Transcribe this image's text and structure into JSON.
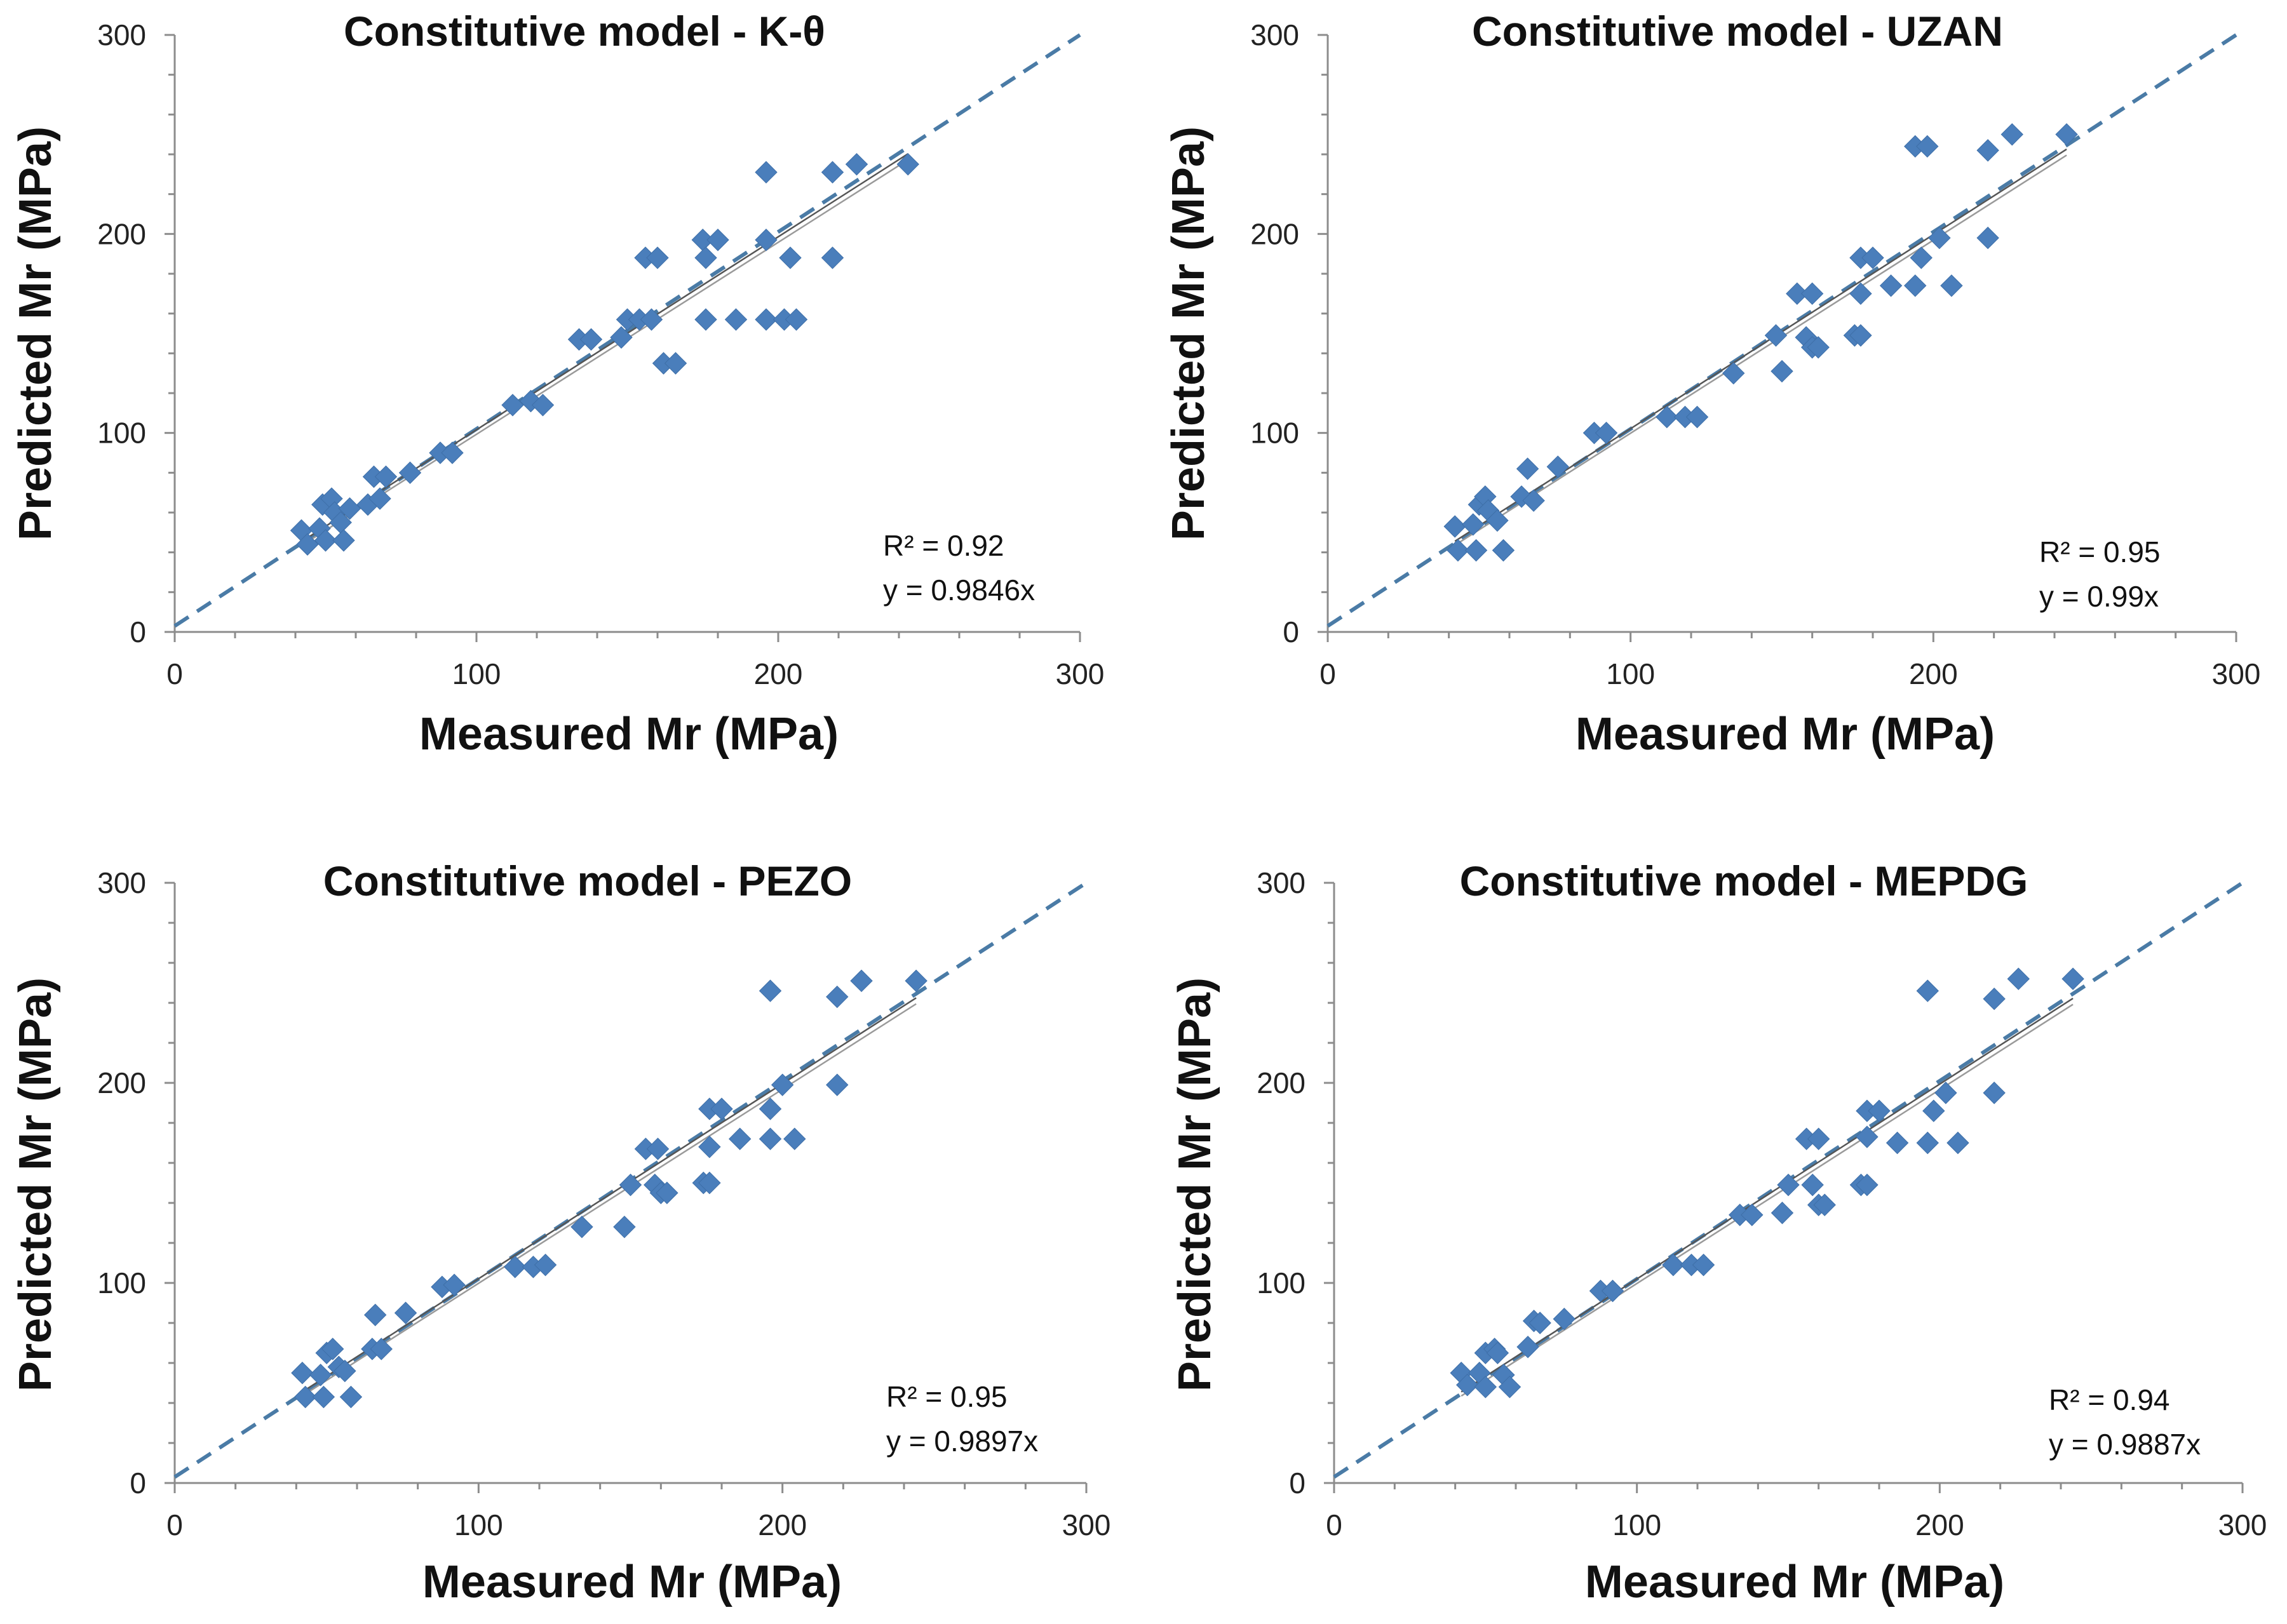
{
  "chart_data": [
    {
      "type": "scatter",
      "title": "Constitutive model - K-θ",
      "xlabel": "Measured Mr (MPa)",
      "ylabel": "Predicted Mr (MPa)",
      "xlim": [
        0,
        300
      ],
      "ylim": [
        0,
        300
      ],
      "xticks": [
        "0",
        "100",
        "200",
        "300"
      ],
      "yticks": [
        "0",
        "100",
        "200",
        "300"
      ],
      "r2_label": "R² = 0.92",
      "equation_label": "y = 0.9846x",
      "slope": 0.9846,
      "color": "#4a7ebb",
      "points": [
        [
          42,
          51
        ],
        [
          44,
          44
        ],
        [
          48,
          52
        ],
        [
          49,
          64
        ],
        [
          50,
          46
        ],
        [
          52,
          67
        ],
        [
          53,
          60
        ],
        [
          55,
          55
        ],
        [
          56,
          46
        ],
        [
          58,
          62
        ],
        [
          64,
          64
        ],
        [
          66,
          78
        ],
        [
          68,
          67
        ],
        [
          70,
          78
        ],
        [
          78,
          80
        ],
        [
          88,
          90
        ],
        [
          92,
          90
        ],
        [
          112,
          114
        ],
        [
          118,
          116
        ],
        [
          122,
          114
        ],
        [
          134,
          147
        ],
        [
          138,
          147
        ],
        [
          148,
          148
        ],
        [
          150,
          157
        ],
        [
          154,
          157
        ],
        [
          156,
          188
        ],
        [
          160,
          188
        ],
        [
          158,
          157
        ],
        [
          162,
          135
        ],
        [
          166,
          135
        ],
        [
          175,
          197
        ],
        [
          176,
          188
        ],
        [
          176,
          157
        ],
        [
          180,
          197
        ],
        [
          186,
          157
        ],
        [
          196,
          157
        ],
        [
          196,
          197
        ],
        [
          196,
          231
        ],
        [
          202,
          157
        ],
        [
          206,
          157
        ],
        [
          204,
          188
        ],
        [
          218,
          231
        ],
        [
          218,
          188
        ],
        [
          226,
          235
        ],
        [
          243,
          235
        ]
      ]
    },
    {
      "type": "scatter",
      "title": "Constitutive model - UZAN",
      "xlabel": "Measured Mr (MPa)",
      "ylabel": "Predicted Mr (MPa)",
      "xlim": [
        0,
        300
      ],
      "ylim": [
        0,
        300
      ],
      "xticks": [
        "0",
        "100",
        "200",
        "300"
      ],
      "yticks": [
        "0",
        "100",
        "200",
        "300"
      ],
      "r2_label": "R² = 0.95",
      "equation_label": "y = 0.99x",
      "slope": 0.99,
      "color": "#4a7ebb",
      "points": [
        [
          42,
          53
        ],
        [
          43,
          41
        ],
        [
          48,
          54
        ],
        [
          49,
          41
        ],
        [
          50,
          64
        ],
        [
          52,
          68
        ],
        [
          53,
          61
        ],
        [
          56,
          56
        ],
        [
          58,
          41
        ],
        [
          64,
          68
        ],
        [
          66,
          82
        ],
        [
          68,
          66
        ],
        [
          76,
          83
        ],
        [
          88,
          100
        ],
        [
          92,
          100
        ],
        [
          112,
          108
        ],
        [
          118,
          108
        ],
        [
          122,
          108
        ],
        [
          134,
          130
        ],
        [
          148,
          149
        ],
        [
          150,
          131
        ],
        [
          155,
          170
        ],
        [
          160,
          170
        ],
        [
          158,
          148
        ],
        [
          160,
          143
        ],
        [
          162,
          143
        ],
        [
          174,
          149
        ],
        [
          176,
          149
        ],
        [
          176,
          188
        ],
        [
          176,
          170
        ],
        [
          180,
          188
        ],
        [
          186,
          174
        ],
        [
          194,
          174
        ],
        [
          194,
          244
        ],
        [
          196,
          188
        ],
        [
          198,
          244
        ],
        [
          202,
          198
        ],
        [
          206,
          174
        ],
        [
          218,
          242
        ],
        [
          218,
          198
        ],
        [
          226,
          250
        ],
        [
          244,
          250
        ]
      ]
    },
    {
      "type": "scatter",
      "title": "Constitutive model - PEZO",
      "xlabel": "Measured Mr (MPa)",
      "ylabel": "Predicted Mr (MPa)",
      "xlim": [
        0,
        300
      ],
      "ylim": [
        0,
        300
      ],
      "xticks": [
        "0",
        "100",
        "200",
        "300"
      ],
      "yticks": [
        "0",
        "100",
        "200",
        "300"
      ],
      "r2_label": "R² = 0.95",
      "equation_label": "y = 0.9897x",
      "slope": 0.9897,
      "color": "#4a7ebb",
      "points": [
        [
          42,
          55
        ],
        [
          43,
          43
        ],
        [
          48,
          54
        ],
        [
          49,
          43
        ],
        [
          50,
          65
        ],
        [
          52,
          67
        ],
        [
          54,
          58
        ],
        [
          56,
          56
        ],
        [
          58,
          43
        ],
        [
          65,
          67
        ],
        [
          66,
          84
        ],
        [
          68,
          67
        ],
        [
          76,
          85
        ],
        [
          88,
          98
        ],
        [
          92,
          99
        ],
        [
          112,
          108
        ],
        [
          118,
          108
        ],
        [
          122,
          109
        ],
        [
          134,
          128
        ],
        [
          148,
          128
        ],
        [
          150,
          149
        ],
        [
          155,
          167
        ],
        [
          159,
          167
        ],
        [
          158,
          149
        ],
        [
          160,
          145
        ],
        [
          162,
          145
        ],
        [
          174,
          150
        ],
        [
          176,
          150
        ],
        [
          176,
          187
        ],
        [
          176,
          168
        ],
        [
          180,
          187
        ],
        [
          186,
          172
        ],
        [
          196,
          172
        ],
        [
          196,
          246
        ],
        [
          196,
          187
        ],
        [
          200,
          199
        ],
        [
          204,
          172
        ],
        [
          218,
          243
        ],
        [
          218,
          199
        ],
        [
          226,
          251
        ],
        [
          244,
          251
        ]
      ]
    },
    {
      "type": "scatter",
      "title": "Constitutive model - MEPDG",
      "xlabel": "Measured Mr (MPa)",
      "ylabel": "Predicted Mr (MPa)",
      "xlim": [
        0,
        300
      ],
      "ylim": [
        0,
        300
      ],
      "xticks": [
        "0",
        "100",
        "200",
        "300"
      ],
      "yticks": [
        "0",
        "100",
        "200",
        "300"
      ],
      "r2_label": "R² = 0.94",
      "equation_label": "y = 0.9887x",
      "slope": 0.9887,
      "color": "#4a7ebb",
      "points": [
        [
          42,
          55
        ],
        [
          44,
          49
        ],
        [
          48,
          55
        ],
        [
          50,
          48
        ],
        [
          50,
          65
        ],
        [
          53,
          67
        ],
        [
          54,
          65
        ],
        [
          56,
          54
        ],
        [
          58,
          48
        ],
        [
          64,
          68
        ],
        [
          66,
          81
        ],
        [
          68,
          80
        ],
        [
          76,
          82
        ],
        [
          88,
          96
        ],
        [
          92,
          96
        ],
        [
          112,
          109
        ],
        [
          118,
          109
        ],
        [
          122,
          109
        ],
        [
          134,
          134
        ],
        [
          138,
          134
        ],
        [
          148,
          135
        ],
        [
          150,
          149
        ],
        [
          156,
          172
        ],
        [
          160,
          172
        ],
        [
          158,
          149
        ],
        [
          160,
          139
        ],
        [
          162,
          139
        ],
        [
          174,
          149
        ],
        [
          176,
          149
        ],
        [
          176,
          186
        ],
        [
          176,
          173
        ],
        [
          180,
          186
        ],
        [
          186,
          170
        ],
        [
          196,
          170
        ],
        [
          196,
          246
        ],
        [
          198,
          186
        ],
        [
          202,
          195
        ],
        [
          206,
          170
        ],
        [
          218,
          242
        ],
        [
          218,
          195
        ],
        [
          226,
          252
        ],
        [
          244,
          252
        ]
      ]
    }
  ]
}
